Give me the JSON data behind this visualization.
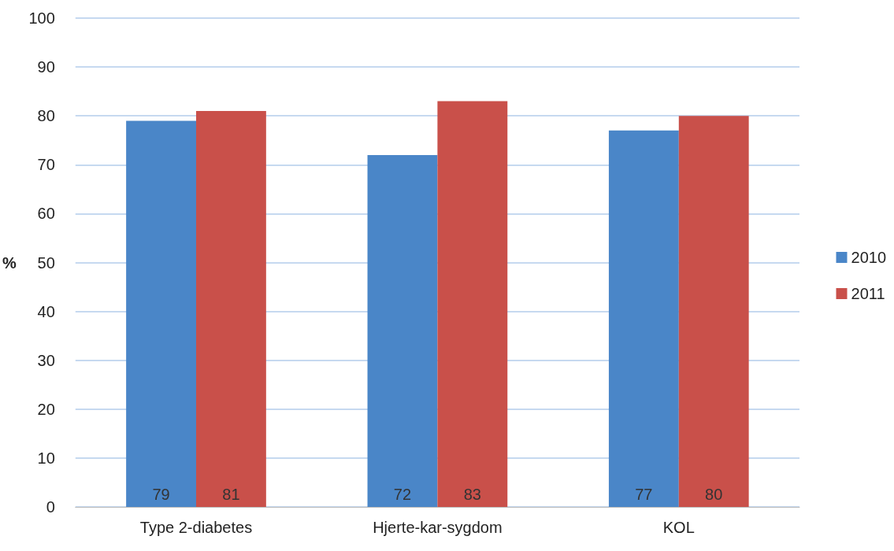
{
  "chart_data": {
    "type": "bar",
    "ylabel": "%",
    "categories": [
      "Type 2-diabetes",
      "Hjerte-kar-sygdom",
      "KOL"
    ],
    "series": [
      {
        "name": "2010",
        "color": "#4a86c8",
        "values": [
          79,
          72,
          77
        ]
      },
      {
        "name": "2011",
        "color": "#c9504a",
        "values": [
          81,
          83,
          80
        ]
      }
    ],
    "ylim": [
      0,
      100
    ],
    "yticks": [
      0,
      10,
      20,
      30,
      40,
      50,
      60,
      70,
      80,
      90,
      100
    ],
    "grid": "y",
    "legend": "right",
    "data_labels": true
  }
}
